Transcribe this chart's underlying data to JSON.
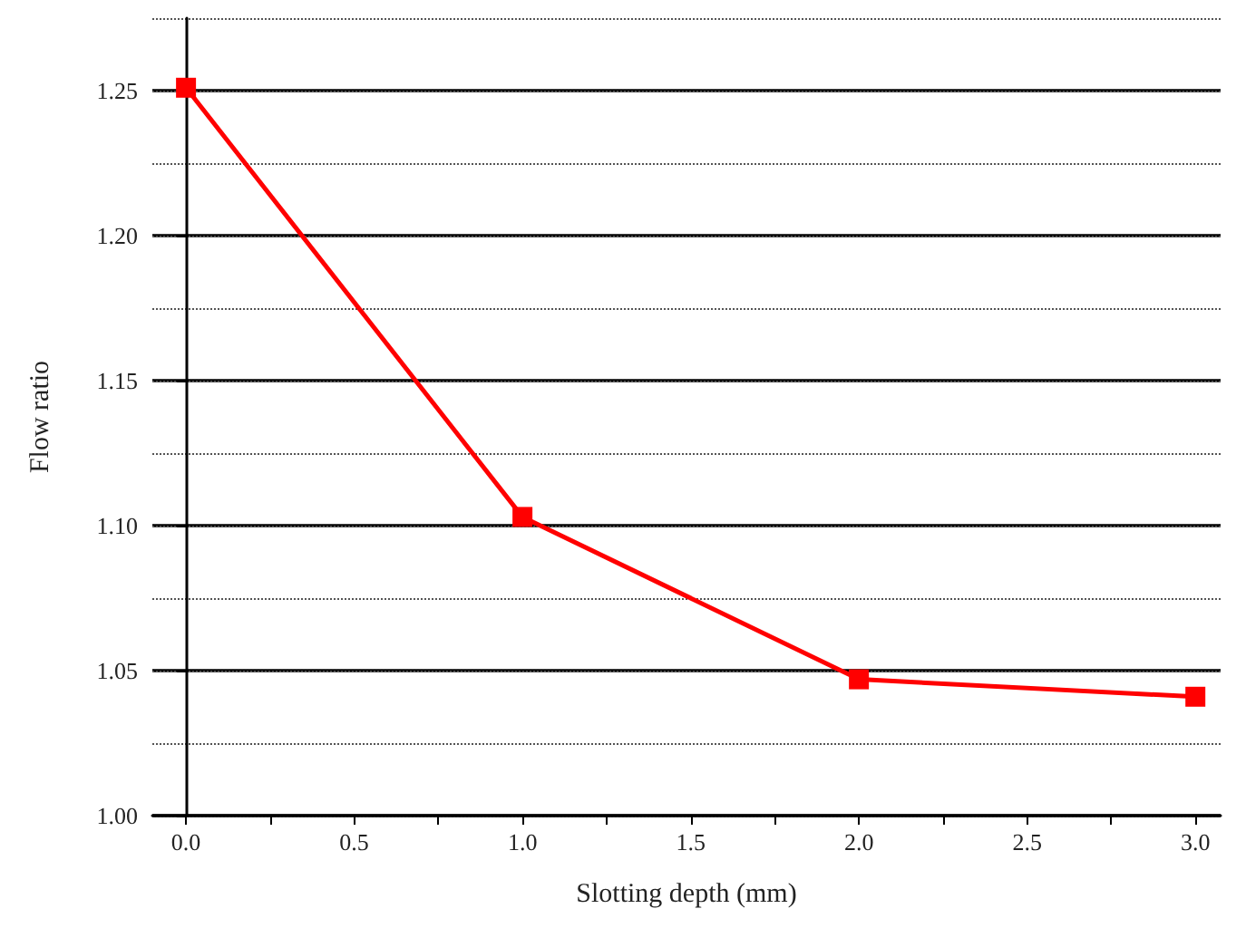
{
  "chart_data": {
    "type": "line",
    "xlabel": "Slotting depth (mm)",
    "ylabel": "Flow ratio",
    "x": [
      0,
      1,
      2,
      3
    ],
    "series": [
      {
        "color": "#ff0000",
        "values": [
          1.251,
          1.103,
          1.047,
          1.041
        ]
      }
    ],
    "xlim": [
      -0.1,
      3.075
    ],
    "ylim": [
      1.0,
      1.275
    ],
    "xticks": [
      {
        "value": 0,
        "label": "0.0"
      },
      {
        "value": 0.25,
        "label": null
      },
      {
        "value": 0.5,
        "label": "0.5"
      },
      {
        "value": 0.75,
        "label": null
      },
      {
        "value": 1,
        "label": "1.0"
      },
      {
        "value": 1.25,
        "label": null
      },
      {
        "value": 1.5,
        "label": "1.5"
      },
      {
        "value": 1.75,
        "label": null
      },
      {
        "value": 2,
        "label": "2.0"
      },
      {
        "value": 2.25,
        "label": null
      },
      {
        "value": 2.5,
        "label": "2.5"
      },
      {
        "value": 2.75,
        "label": null
      },
      {
        "value": 3,
        "label": "3.0"
      }
    ],
    "yticks": [
      {
        "value": 1.0,
        "label": "1.00"
      },
      {
        "value": 1.025,
        "label": null
      },
      {
        "value": 1.05,
        "label": "1.05"
      },
      {
        "value": 1.075,
        "label": null
      },
      {
        "value": 1.1,
        "label": "1.10"
      },
      {
        "value": 1.125,
        "label": null
      },
      {
        "value": 1.15,
        "label": "1.15"
      },
      {
        "value": 1.175,
        "label": null
      },
      {
        "value": 1.2,
        "label": "1.20"
      },
      {
        "value": 1.225,
        "label": null
      },
      {
        "value": 1.25,
        "label": "1.25"
      }
    ],
    "grid": "y",
    "marker": "square",
    "line_style": "solid"
  }
}
